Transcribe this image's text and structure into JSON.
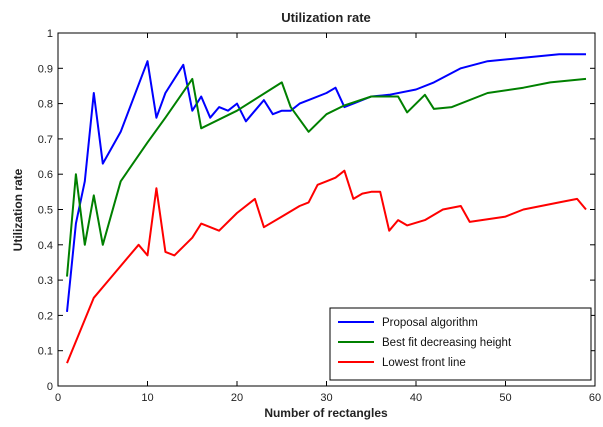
{
  "chart_data": {
    "type": "line",
    "title": "Utilization rate",
    "xlabel": "Number of rectangles",
    "ylabel": "Utilization rate",
    "xlim": [
      0,
      60
    ],
    "ylim": [
      0,
      1
    ],
    "xticks": [
      "0",
      "10",
      "20",
      "30",
      "40",
      "50",
      "60"
    ],
    "yticks": [
      "0",
      "0.1",
      "0.2",
      "0.3",
      "0.4",
      "0.5",
      "0.6",
      "0.7",
      "0.8",
      "0.9",
      "1"
    ],
    "grid": false,
    "legend_position": "bottom-right",
    "series": [
      {
        "name": "Proposal algorithm",
        "color": "#0000ff",
        "x": [
          1,
          2,
          3,
          4,
          5,
          7,
          10,
          11,
          12,
          14,
          15,
          16,
          17,
          18,
          19,
          20,
          21,
          22,
          23,
          24,
          25,
          26,
          27,
          28,
          30,
          31,
          32,
          33,
          35,
          37,
          40,
          42,
          45,
          48,
          52,
          56,
          59
        ],
        "y": [
          0.21,
          0.46,
          0.58,
          0.83,
          0.63,
          0.72,
          0.92,
          0.76,
          0.83,
          0.91,
          0.78,
          0.82,
          0.76,
          0.79,
          0.78,
          0.8,
          0.75,
          0.78,
          0.81,
          0.77,
          0.78,
          0.78,
          0.8,
          0.81,
          0.83,
          0.845,
          0.79,
          0.8,
          0.82,
          0.825,
          0.84,
          0.86,
          0.9,
          0.92,
          0.93,
          0.94,
          0.94
        ]
      },
      {
        "name": "Best fit decreasing height",
        "color": "#008000",
        "x": [
          1,
          2,
          3,
          4,
          5,
          7,
          10,
          12,
          15,
          16,
          20,
          25,
          26,
          28,
          30,
          32,
          35,
          38,
          39,
          41,
          42,
          44,
          48,
          52,
          55,
          59
        ],
        "y": [
          0.31,
          0.6,
          0.4,
          0.54,
          0.4,
          0.58,
          0.69,
          0.76,
          0.87,
          0.73,
          0.78,
          0.86,
          0.79,
          0.72,
          0.77,
          0.795,
          0.82,
          0.82,
          0.775,
          0.825,
          0.785,
          0.79,
          0.83,
          0.845,
          0.86,
          0.87
        ]
      },
      {
        "name": "Lowest front line",
        "color": "#ff0000",
        "x": [
          1,
          4,
          6,
          9,
          10,
          11,
          12,
          13,
          15,
          16,
          18,
          20,
          22,
          23,
          25,
          27,
          28,
          29,
          30,
          31,
          32,
          33,
          34,
          35,
          36,
          37,
          38,
          39,
          41,
          43,
          45,
          46,
          50,
          52,
          56,
          58,
          59
        ],
        "y": [
          0.065,
          0.25,
          0.31,
          0.4,
          0.37,
          0.56,
          0.38,
          0.37,
          0.42,
          0.46,
          0.44,
          0.49,
          0.53,
          0.45,
          0.48,
          0.51,
          0.52,
          0.57,
          0.58,
          0.59,
          0.61,
          0.53,
          0.545,
          0.55,
          0.55,
          0.44,
          0.47,
          0.455,
          0.47,
          0.5,
          0.51,
          0.465,
          0.48,
          0.5,
          0.52,
          0.53,
          0.5
        ]
      }
    ]
  }
}
